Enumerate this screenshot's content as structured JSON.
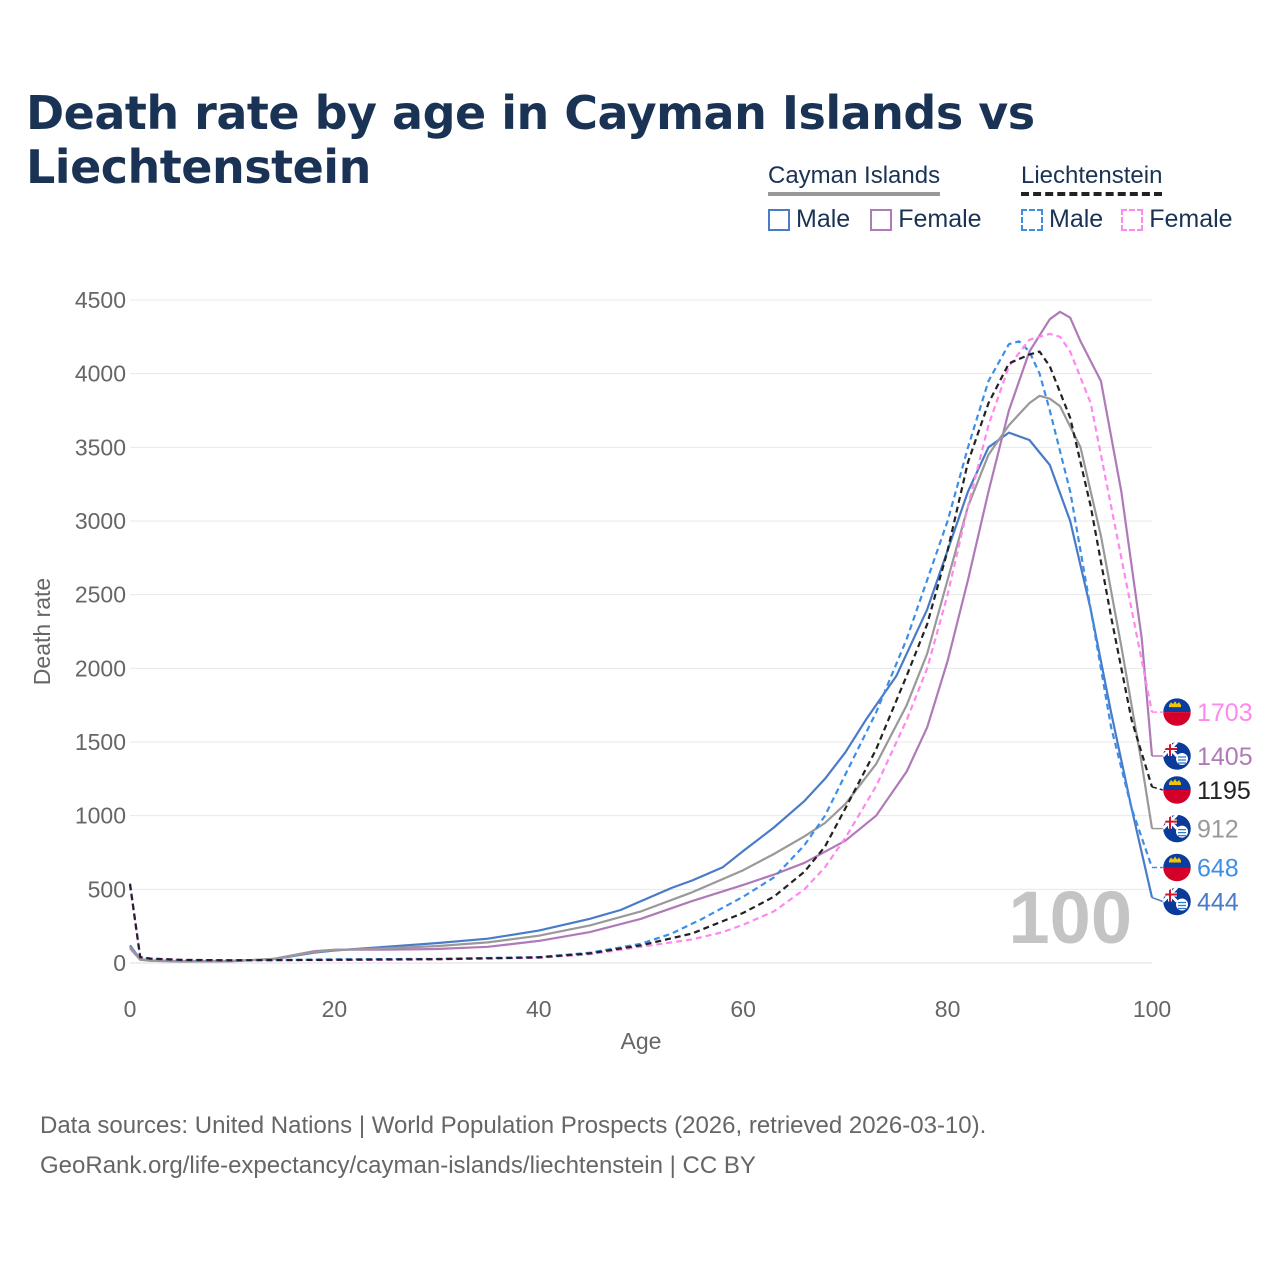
{
  "title": "Death rate by age in Cayman Islands vs Liechtenstein",
  "legend": {
    "cayman": {
      "title": "Cayman Islands",
      "male": "Male",
      "female": "Female"
    },
    "liechtenstein": {
      "title": "Liechtenstein",
      "male": "Male",
      "female": "Female"
    }
  },
  "colors": {
    "cayman_male": "#4a7bc8",
    "cayman_female": "#b07ab8",
    "cayman_total": "#999999",
    "liech_male": "#3d8ee8",
    "liech_female": "#ff88ee",
    "liech_total": "#222222"
  },
  "year_watermark": "100",
  "sources": {
    "line1": "Data sources: United Nations | World Population Prospects (2026, retrieved 2026-03-10).",
    "line2": "GeoRank.org/life-expectancy/cayman-islands/liechtenstein | CC BY"
  },
  "chart_data": {
    "type": "line",
    "xlabel": "Age",
    "ylabel": "Death rate",
    "xlim": [
      0,
      100
    ],
    "ylim": [
      0,
      4500
    ],
    "xticks": [
      "0",
      "20",
      "40",
      "60",
      "80",
      "100"
    ],
    "yticks": [
      "0",
      "500",
      "1000",
      "1500",
      "2000",
      "2500",
      "3000",
      "3500",
      "4000",
      "4500"
    ],
    "series": [
      {
        "name": "Cayman Islands Male",
        "key": "cayman_male",
        "dashed": false,
        "flag": "cayman",
        "end_label": "444",
        "points": [
          [
            0,
            120
          ],
          [
            1,
            25
          ],
          [
            2,
            18
          ],
          [
            5,
            12
          ],
          [
            10,
            14
          ],
          [
            14,
            25
          ],
          [
            18,
            70
          ],
          [
            20,
            85
          ],
          [
            25,
            110
          ],
          [
            30,
            135
          ],
          [
            35,
            165
          ],
          [
            40,
            220
          ],
          [
            45,
            300
          ],
          [
            48,
            360
          ],
          [
            50,
            420
          ],
          [
            53,
            510
          ],
          [
            55,
            560
          ],
          [
            58,
            650
          ],
          [
            60,
            760
          ],
          [
            63,
            920
          ],
          [
            66,
            1100
          ],
          [
            68,
            1250
          ],
          [
            70,
            1430
          ],
          [
            72,
            1650
          ],
          [
            75,
            1950
          ],
          [
            78,
            2400
          ],
          [
            80,
            2800
          ],
          [
            82,
            3200
          ],
          [
            84,
            3500
          ],
          [
            86,
            3600
          ],
          [
            88,
            3550
          ],
          [
            90,
            3380
          ],
          [
            92,
            3000
          ],
          [
            94,
            2400
          ],
          [
            96,
            1700
          ],
          [
            98,
            1050
          ],
          [
            100,
            444
          ]
        ]
      },
      {
        "name": "Cayman Islands Female",
        "key": "cayman_female",
        "dashed": false,
        "flag": "cayman",
        "end_label": "1405",
        "points": [
          [
            0,
            100
          ],
          [
            1,
            22
          ],
          [
            2,
            15
          ],
          [
            5,
            10
          ],
          [
            10,
            12
          ],
          [
            14,
            28
          ],
          [
            18,
            80
          ],
          [
            20,
            90
          ],
          [
            25,
            90
          ],
          [
            30,
            95
          ],
          [
            35,
            110
          ],
          [
            40,
            150
          ],
          [
            45,
            210
          ],
          [
            50,
            300
          ],
          [
            55,
            420
          ],
          [
            60,
            530
          ],
          [
            63,
            600
          ],
          [
            66,
            680
          ],
          [
            70,
            830
          ],
          [
            73,
            1000
          ],
          [
            76,
            1300
          ],
          [
            78,
            1600
          ],
          [
            80,
            2050
          ],
          [
            82,
            2600
          ],
          [
            84,
            3200
          ],
          [
            86,
            3750
          ],
          [
            88,
            4150
          ],
          [
            90,
            4370
          ],
          [
            91,
            4420
          ],
          [
            92,
            4380
          ],
          [
            93,
            4220
          ],
          [
            95,
            3950
          ],
          [
            97,
            3200
          ],
          [
            99,
            2200
          ],
          [
            100,
            1405
          ]
        ]
      },
      {
        "name": "Cayman Islands Total",
        "key": "cayman_total",
        "dashed": false,
        "flag": "cayman",
        "end_label": "912",
        "points": [
          [
            0,
            110
          ],
          [
            1,
            24
          ],
          [
            2,
            17
          ],
          [
            5,
            11
          ],
          [
            10,
            13
          ],
          [
            14,
            27
          ],
          [
            18,
            75
          ],
          [
            20,
            88
          ],
          [
            25,
            100
          ],
          [
            30,
            115
          ],
          [
            35,
            140
          ],
          [
            40,
            185
          ],
          [
            45,
            255
          ],
          [
            50,
            350
          ],
          [
            55,
            480
          ],
          [
            60,
            630
          ],
          [
            63,
            740
          ],
          [
            66,
            860
          ],
          [
            68,
            950
          ],
          [
            70,
            1080
          ],
          [
            73,
            1350
          ],
          [
            76,
            1750
          ],
          [
            78,
            2100
          ],
          [
            80,
            2600
          ],
          [
            82,
            3100
          ],
          [
            84,
            3450
          ],
          [
            86,
            3650
          ],
          [
            88,
            3800
          ],
          [
            89,
            3850
          ],
          [
            90,
            3830
          ],
          [
            91,
            3780
          ],
          [
            93,
            3500
          ],
          [
            95,
            2900
          ],
          [
            97,
            2150
          ],
          [
            99,
            1350
          ],
          [
            100,
            912
          ]
        ]
      },
      {
        "name": "Liechtenstein Male",
        "key": "liech_male",
        "dashed": true,
        "flag": "liechtenstein",
        "end_label": "648",
        "points": [
          [
            0,
            540
          ],
          [
            1,
            40
          ],
          [
            2,
            30
          ],
          [
            5,
            20
          ],
          [
            10,
            18
          ],
          [
            15,
            20
          ],
          [
            20,
            25
          ],
          [
            30,
            28
          ],
          [
            40,
            40
          ],
          [
            45,
            70
          ],
          [
            50,
            130
          ],
          [
            53,
            200
          ],
          [
            56,
            300
          ],
          [
            60,
            450
          ],
          [
            63,
            580
          ],
          [
            66,
            800
          ],
          [
            68,
            1000
          ],
          [
            70,
            1280
          ],
          [
            73,
            1700
          ],
          [
            76,
            2200
          ],
          [
            78,
            2600
          ],
          [
            80,
            3000
          ],
          [
            82,
            3500
          ],
          [
            84,
            3950
          ],
          [
            86,
            4200
          ],
          [
            87,
            4220
          ],
          [
            88,
            4150
          ],
          [
            89,
            4000
          ],
          [
            90,
            3750
          ],
          [
            92,
            3200
          ],
          [
            94,
            2400
          ],
          [
            96,
            1600
          ],
          [
            98,
            1050
          ],
          [
            100,
            648
          ]
        ]
      },
      {
        "name": "Liechtenstein Female",
        "key": "liech_female",
        "dashed": true,
        "flag": "liechtenstein",
        "end_label": "1703",
        "points": [
          [
            0,
            530
          ],
          [
            1,
            40
          ],
          [
            2,
            30
          ],
          [
            5,
            22
          ],
          [
            10,
            18
          ],
          [
            20,
            20
          ],
          [
            30,
            25
          ],
          [
            40,
            35
          ],
          [
            45,
            60
          ],
          [
            50,
            110
          ],
          [
            55,
            160
          ],
          [
            58,
            210
          ],
          [
            60,
            260
          ],
          [
            63,
            350
          ],
          [
            66,
            500
          ],
          [
            68,
            650
          ],
          [
            70,
            850
          ],
          [
            73,
            1200
          ],
          [
            76,
            1650
          ],
          [
            78,
            2000
          ],
          [
            80,
            2500
          ],
          [
            82,
            3100
          ],
          [
            84,
            3650
          ],
          [
            86,
            4050
          ],
          [
            88,
            4230
          ],
          [
            90,
            4270
          ],
          [
            91,
            4250
          ],
          [
            92,
            4150
          ],
          [
            94,
            3800
          ],
          [
            96,
            3100
          ],
          [
            98,
            2400
          ],
          [
            100,
            1703
          ]
        ]
      },
      {
        "name": "Liechtenstein Total",
        "key": "liech_total",
        "dashed": true,
        "flag": "liechtenstein",
        "end_label": "1195",
        "points": [
          [
            0,
            535
          ],
          [
            1,
            40
          ],
          [
            2,
            30
          ],
          [
            5,
            21
          ],
          [
            10,
            18
          ],
          [
            20,
            22
          ],
          [
            30,
            26
          ],
          [
            40,
            38
          ],
          [
            45,
            65
          ],
          [
            50,
            120
          ],
          [
            55,
            200
          ],
          [
            60,
            340
          ],
          [
            63,
            450
          ],
          [
            66,
            620
          ],
          [
            68,
            790
          ],
          [
            70,
            1050
          ],
          [
            73,
            1450
          ],
          [
            76,
            1950
          ],
          [
            78,
            2300
          ],
          [
            80,
            2800
          ],
          [
            82,
            3400
          ],
          [
            84,
            3800
          ],
          [
            86,
            4070
          ],
          [
            88,
            4130
          ],
          [
            89,
            4150
          ],
          [
            90,
            4050
          ],
          [
            92,
            3700
          ],
          [
            94,
            3100
          ],
          [
            96,
            2350
          ],
          [
            98,
            1650
          ],
          [
            100,
            1195
          ]
        ]
      }
    ]
  }
}
